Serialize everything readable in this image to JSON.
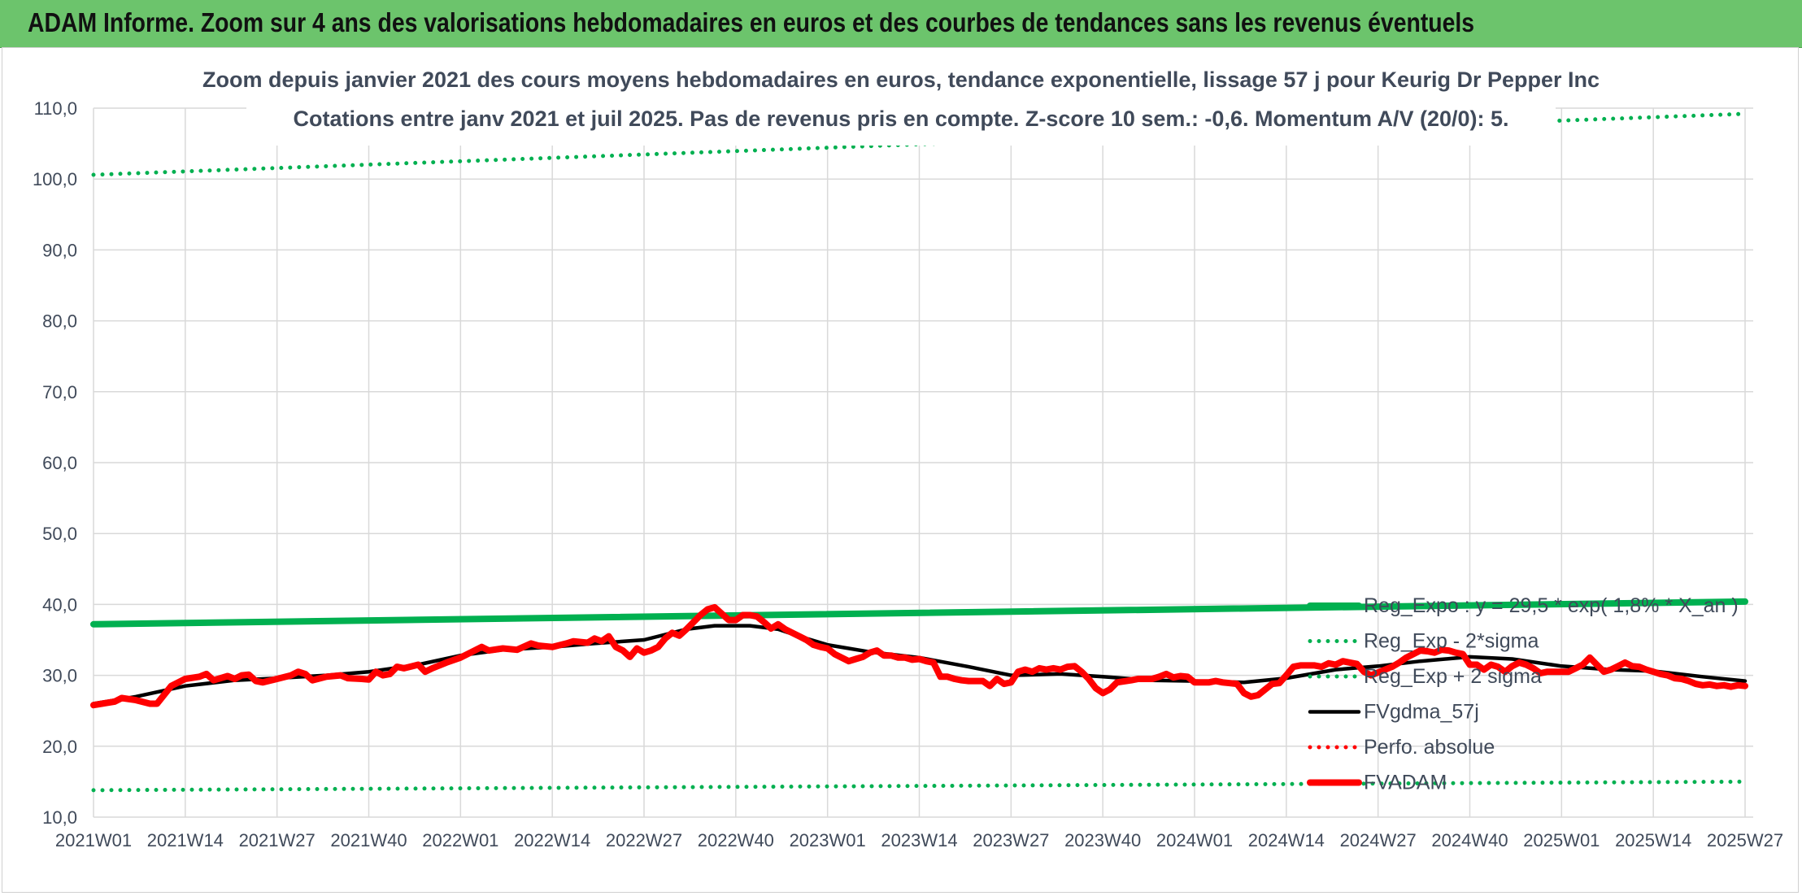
{
  "banner": {
    "title": "ADAM Informe. Zoom sur 4 ans des valorisations hebdomadaires en euros et des courbes de tendances sans les revenus éventuels"
  },
  "chart_data": {
    "type": "line",
    "title": "Zoom depuis janvier 2021 des cours moyens hebdomadaires en euros, tendance exponentielle, lissage 57 j pour Keurig Dr Pepper Inc",
    "subtitle": "Cotations entre janv 2021 et juil 2025. Pas de revenus pris en compte. Z-score 10 sem.: -0,6. Momentum A/V (20/0): 5.",
    "xlabel": "",
    "ylabel": "",
    "ylim": [
      10,
      110
    ],
    "y_ticks": [
      "10,0",
      "20,0",
      "30,0",
      "40,0",
      "50,0",
      "60,0",
      "70,0",
      "80,0",
      "90,0",
      "100,0",
      "110,0"
    ],
    "x_ticks": [
      "2021W01",
      "2021W14",
      "2021W27",
      "2021W40",
      "2022W01",
      "2022W14",
      "2022W27",
      "2022W40",
      "2023W01",
      "2023W14",
      "2023W27",
      "2023W40",
      "2024W01",
      "2024W14",
      "2024W27",
      "2024W40",
      "2025W01",
      "2025W14",
      "2025W27"
    ],
    "grid": true,
    "legend_position": "right",
    "x_index": [
      0,
      13,
      26,
      39,
      52,
      65,
      78,
      91,
      104,
      117,
      130,
      143,
      156,
      169,
      182,
      195,
      208,
      221,
      234
    ],
    "series": [
      {
        "name": "Reg_Expo : y = 29,5 * exp( 1,8% * X_an )",
        "style": "solid-thick",
        "color": "#00b050",
        "points": [
          [
            0,
            37.2
          ],
          [
            234,
            40.4
          ]
        ]
      },
      {
        "name": "Reg_Exp - 2*sigma",
        "style": "dotted",
        "color": "#00b050",
        "points": [
          [
            0,
            13.8
          ],
          [
            234,
            15.0
          ]
        ]
      },
      {
        "name": "Reg_Exp + 2 sigma",
        "style": "dotted",
        "color": "#00b050",
        "points": [
          [
            0,
            100.6
          ],
          [
            234,
            109.2
          ]
        ]
      },
      {
        "name": "FVgdma_57j",
        "style": "solid",
        "color": "#000000",
        "points": [
          [
            0,
            26.0
          ],
          [
            6,
            27.0
          ],
          [
            13,
            28.5
          ],
          [
            20,
            29.3
          ],
          [
            26,
            29.6
          ],
          [
            33,
            30.0
          ],
          [
            39,
            30.5
          ],
          [
            46,
            31.5
          ],
          [
            52,
            32.8
          ],
          [
            58,
            33.6
          ],
          [
            65,
            34.0
          ],
          [
            71,
            34.5
          ],
          [
            78,
            35.0
          ],
          [
            84,
            36.5
          ],
          [
            88,
            37.0
          ],
          [
            93,
            37.0
          ],
          [
            97,
            36.5
          ],
          [
            100,
            35.5
          ],
          [
            104,
            34.3
          ],
          [
            110,
            33.3
          ],
          [
            117,
            32.5
          ],
          [
            124,
            31.2
          ],
          [
            130,
            30.0
          ],
          [
            137,
            30.2
          ],
          [
            143,
            29.8
          ],
          [
            150,
            29.3
          ],
          [
            156,
            29.2
          ],
          [
            163,
            29.0
          ],
          [
            169,
            29.6
          ],
          [
            176,
            30.8
          ],
          [
            182,
            31.3
          ],
          [
            188,
            32.0
          ],
          [
            195,
            32.6
          ],
          [
            201,
            32.3
          ],
          [
            208,
            31.3
          ],
          [
            215,
            30.8
          ],
          [
            221,
            30.6
          ],
          [
            228,
            29.8
          ],
          [
            234,
            29.2
          ]
        ]
      },
      {
        "name": "Perfo. absolue",
        "style": "dotted",
        "color": "#ff0000",
        "points": []
      },
      {
        "name": "FVADAM",
        "style": "solid-thick",
        "color": "#ff0000",
        "points": [
          [
            0,
            25.8
          ],
          [
            3,
            26.3
          ],
          [
            4,
            26.8
          ],
          [
            6,
            26.5
          ],
          [
            8,
            26.0
          ],
          [
            9,
            26.0
          ],
          [
            11,
            28.5
          ],
          [
            13,
            29.5
          ],
          [
            15,
            29.8
          ],
          [
            16,
            30.2
          ],
          [
            17,
            29.3
          ],
          [
            19,
            29.9
          ],
          [
            20,
            29.5
          ],
          [
            21,
            30.0
          ],
          [
            22,
            30.1
          ],
          [
            23,
            29.2
          ],
          [
            24,
            29.0
          ],
          [
            26,
            29.5
          ],
          [
            28,
            30.0
          ],
          [
            29,
            30.5
          ],
          [
            30,
            30.2
          ],
          [
            31,
            29.3
          ],
          [
            33,
            29.8
          ],
          [
            35,
            30.0
          ],
          [
            36,
            29.6
          ],
          [
            38,
            29.5
          ],
          [
            39,
            29.4
          ],
          [
            40,
            30.5
          ],
          [
            41,
            30.0
          ],
          [
            42,
            30.2
          ],
          [
            43,
            31.2
          ],
          [
            44,
            31.0
          ],
          [
            46,
            31.5
          ],
          [
            47,
            30.5
          ],
          [
            48,
            31.0
          ],
          [
            50,
            31.8
          ],
          [
            52,
            32.5
          ],
          [
            54,
            33.5
          ],
          [
            55,
            34.0
          ],
          [
            56,
            33.5
          ],
          [
            58,
            33.8
          ],
          [
            60,
            33.6
          ],
          [
            62,
            34.5
          ],
          [
            63,
            34.2
          ],
          [
            65,
            34.0
          ],
          [
            67,
            34.5
          ],
          [
            68,
            34.8
          ],
          [
            70,
            34.6
          ],
          [
            71,
            35.2
          ],
          [
            72,
            34.8
          ],
          [
            73,
            35.5
          ],
          [
            74,
            34.0
          ],
          [
            75,
            33.5
          ],
          [
            76,
            32.6
          ],
          [
            77,
            33.8
          ],
          [
            78,
            33.2
          ],
          [
            79,
            33.5
          ],
          [
            80,
            34.0
          ],
          [
            81,
            35.2
          ],
          [
            82,
            36.0
          ],
          [
            83,
            35.6
          ],
          [
            84,
            36.5
          ],
          [
            85,
            37.5
          ],
          [
            86,
            38.5
          ],
          [
            87,
            39.3
          ],
          [
            88,
            39.6
          ],
          [
            89,
            38.7
          ],
          [
            90,
            37.8
          ],
          [
            91,
            37.8
          ],
          [
            92,
            38.5
          ],
          [
            93,
            38.5
          ],
          [
            94,
            38.3
          ],
          [
            95,
            37.5
          ],
          [
            96,
            36.6
          ],
          [
            97,
            37.2
          ],
          [
            98,
            36.5
          ],
          [
            99,
            36.0
          ],
          [
            100,
            35.5
          ],
          [
            101,
            35.0
          ],
          [
            102,
            34.3
          ],
          [
            103,
            34.0
          ],
          [
            104,
            33.8
          ],
          [
            105,
            33.0
          ],
          [
            106,
            32.5
          ],
          [
            107,
            32.0
          ],
          [
            108,
            32.3
          ],
          [
            109,
            32.6
          ],
          [
            110,
            33.2
          ],
          [
            111,
            33.5
          ],
          [
            112,
            32.8
          ],
          [
            113,
            32.8
          ],
          [
            114,
            32.5
          ],
          [
            115,
            32.5
          ],
          [
            116,
            32.2
          ],
          [
            117,
            32.3
          ],
          [
            118,
            32.0
          ],
          [
            119,
            31.8
          ],
          [
            120,
            29.8
          ],
          [
            121,
            29.8
          ],
          [
            122,
            29.5
          ],
          [
            123,
            29.3
          ],
          [
            124,
            29.2
          ],
          [
            125,
            29.2
          ],
          [
            126,
            29.2
          ],
          [
            127,
            28.5
          ],
          [
            128,
            29.5
          ],
          [
            129,
            28.8
          ],
          [
            130,
            29.0
          ],
          [
            131,
            30.5
          ],
          [
            132,
            30.8
          ],
          [
            133,
            30.5
          ],
          [
            134,
            31.0
          ],
          [
            135,
            30.8
          ],
          [
            136,
            31.0
          ],
          [
            137,
            30.8
          ],
          [
            138,
            31.2
          ],
          [
            139,
            31.3
          ],
          [
            140,
            30.5
          ],
          [
            141,
            29.5
          ],
          [
            142,
            28.2
          ],
          [
            143,
            27.5
          ],
          [
            144,
            28.0
          ],
          [
            145,
            29.0
          ],
          [
            147,
            29.3
          ],
          [
            148,
            29.5
          ],
          [
            150,
            29.5
          ],
          [
            151,
            29.8
          ],
          [
            152,
            30.2
          ],
          [
            153,
            29.7
          ],
          [
            154,
            29.9
          ],
          [
            155,
            29.8
          ],
          [
            156,
            29.0
          ],
          [
            158,
            29.0
          ],
          [
            159,
            29.2
          ],
          [
            160,
            29.0
          ],
          [
            161,
            28.9
          ],
          [
            162,
            28.8
          ],
          [
            163,
            27.5
          ],
          [
            164,
            27.0
          ],
          [
            165,
            27.2
          ],
          [
            166,
            28.0
          ],
          [
            167,
            28.8
          ],
          [
            168,
            28.9
          ],
          [
            169,
            30.0
          ],
          [
            170,
            31.2
          ],
          [
            171,
            31.4
          ],
          [
            172,
            31.4
          ],
          [
            173,
            31.4
          ],
          [
            174,
            31.2
          ],
          [
            175,
            31.7
          ],
          [
            176,
            31.5
          ],
          [
            177,
            32.0
          ],
          [
            178,
            31.8
          ],
          [
            179,
            31.6
          ],
          [
            180,
            30.5
          ],
          [
            181,
            30.0
          ],
          [
            182,
            30.4
          ],
          [
            183,
            30.8
          ],
          [
            184,
            31.2
          ],
          [
            185,
            31.8
          ],
          [
            186,
            32.5
          ],
          [
            187,
            33.0
          ],
          [
            188,
            33.5
          ],
          [
            189,
            33.4
          ],
          [
            190,
            33.2
          ],
          [
            191,
            33.6
          ],
          [
            192,
            33.5
          ],
          [
            193,
            33.2
          ],
          [
            194,
            33.0
          ],
          [
            195,
            31.5
          ],
          [
            196,
            31.5
          ],
          [
            197,
            30.8
          ],
          [
            198,
            31.5
          ],
          [
            199,
            31.2
          ],
          [
            200,
            30.5
          ],
          [
            201,
            31.3
          ],
          [
            202,
            31.8
          ],
          [
            203,
            31.5
          ],
          [
            204,
            31.0
          ],
          [
            205,
            30.3
          ],
          [
            206,
            30.5
          ],
          [
            207,
            30.5
          ],
          [
            208,
            30.5
          ],
          [
            209,
            30.5
          ],
          [
            210,
            31.0
          ],
          [
            211,
            31.5
          ],
          [
            212,
            32.5
          ],
          [
            213,
            31.5
          ],
          [
            214,
            30.5
          ],
          [
            215,
            30.8
          ],
          [
            216,
            31.3
          ],
          [
            217,
            31.8
          ],
          [
            218,
            31.3
          ],
          [
            219,
            31.2
          ],
          [
            220,
            30.8
          ],
          [
            221,
            30.5
          ],
          [
            222,
            30.2
          ],
          [
            223,
            30.0
          ],
          [
            224,
            29.6
          ],
          [
            225,
            29.5
          ],
          [
            226,
            29.2
          ],
          [
            227,
            28.8
          ],
          [
            228,
            28.6
          ],
          [
            229,
            28.7
          ],
          [
            230,
            28.5
          ],
          [
            231,
            28.6
          ],
          [
            232,
            28.4
          ],
          [
            233,
            28.6
          ],
          [
            234,
            28.5
          ]
        ]
      }
    ]
  }
}
